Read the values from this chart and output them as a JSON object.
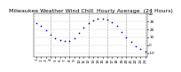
{
  "title": "Milwaukee Weather Wind Chill  Hourly Average  (24 Hours)",
  "title_fontsize": 4.5,
  "hours": [
    1,
    2,
    3,
    4,
    5,
    6,
    7,
    8,
    9,
    10,
    11,
    12,
    13,
    14,
    15,
    16,
    17,
    18,
    19,
    20,
    21,
    22,
    23,
    24
  ],
  "wind_chill": [
    28,
    24,
    19,
    13,
    9,
    6,
    5,
    5,
    9,
    15,
    22,
    28,
    31,
    33,
    33,
    32,
    29,
    24,
    17,
    10,
    4,
    -1,
    -5,
    -8
  ],
  "dot_color": "#0000cc",
  "bg_color": "#ffffff",
  "grid_color": "#999999",
  "ylim": [
    -15,
    40
  ],
  "xlim": [
    0.5,
    24.5
  ],
  "tick_fontsize": 3.0,
  "dot_size": 1.5,
  "dashed_vlines": [
    4,
    8,
    12,
    16,
    20,
    24
  ],
  "ytick_values": [
    -10,
    0,
    10,
    20,
    30,
    40
  ],
  "ytick_labels": [
    "-10",
    "0",
    "10",
    "20",
    "30",
    "40"
  ]
}
